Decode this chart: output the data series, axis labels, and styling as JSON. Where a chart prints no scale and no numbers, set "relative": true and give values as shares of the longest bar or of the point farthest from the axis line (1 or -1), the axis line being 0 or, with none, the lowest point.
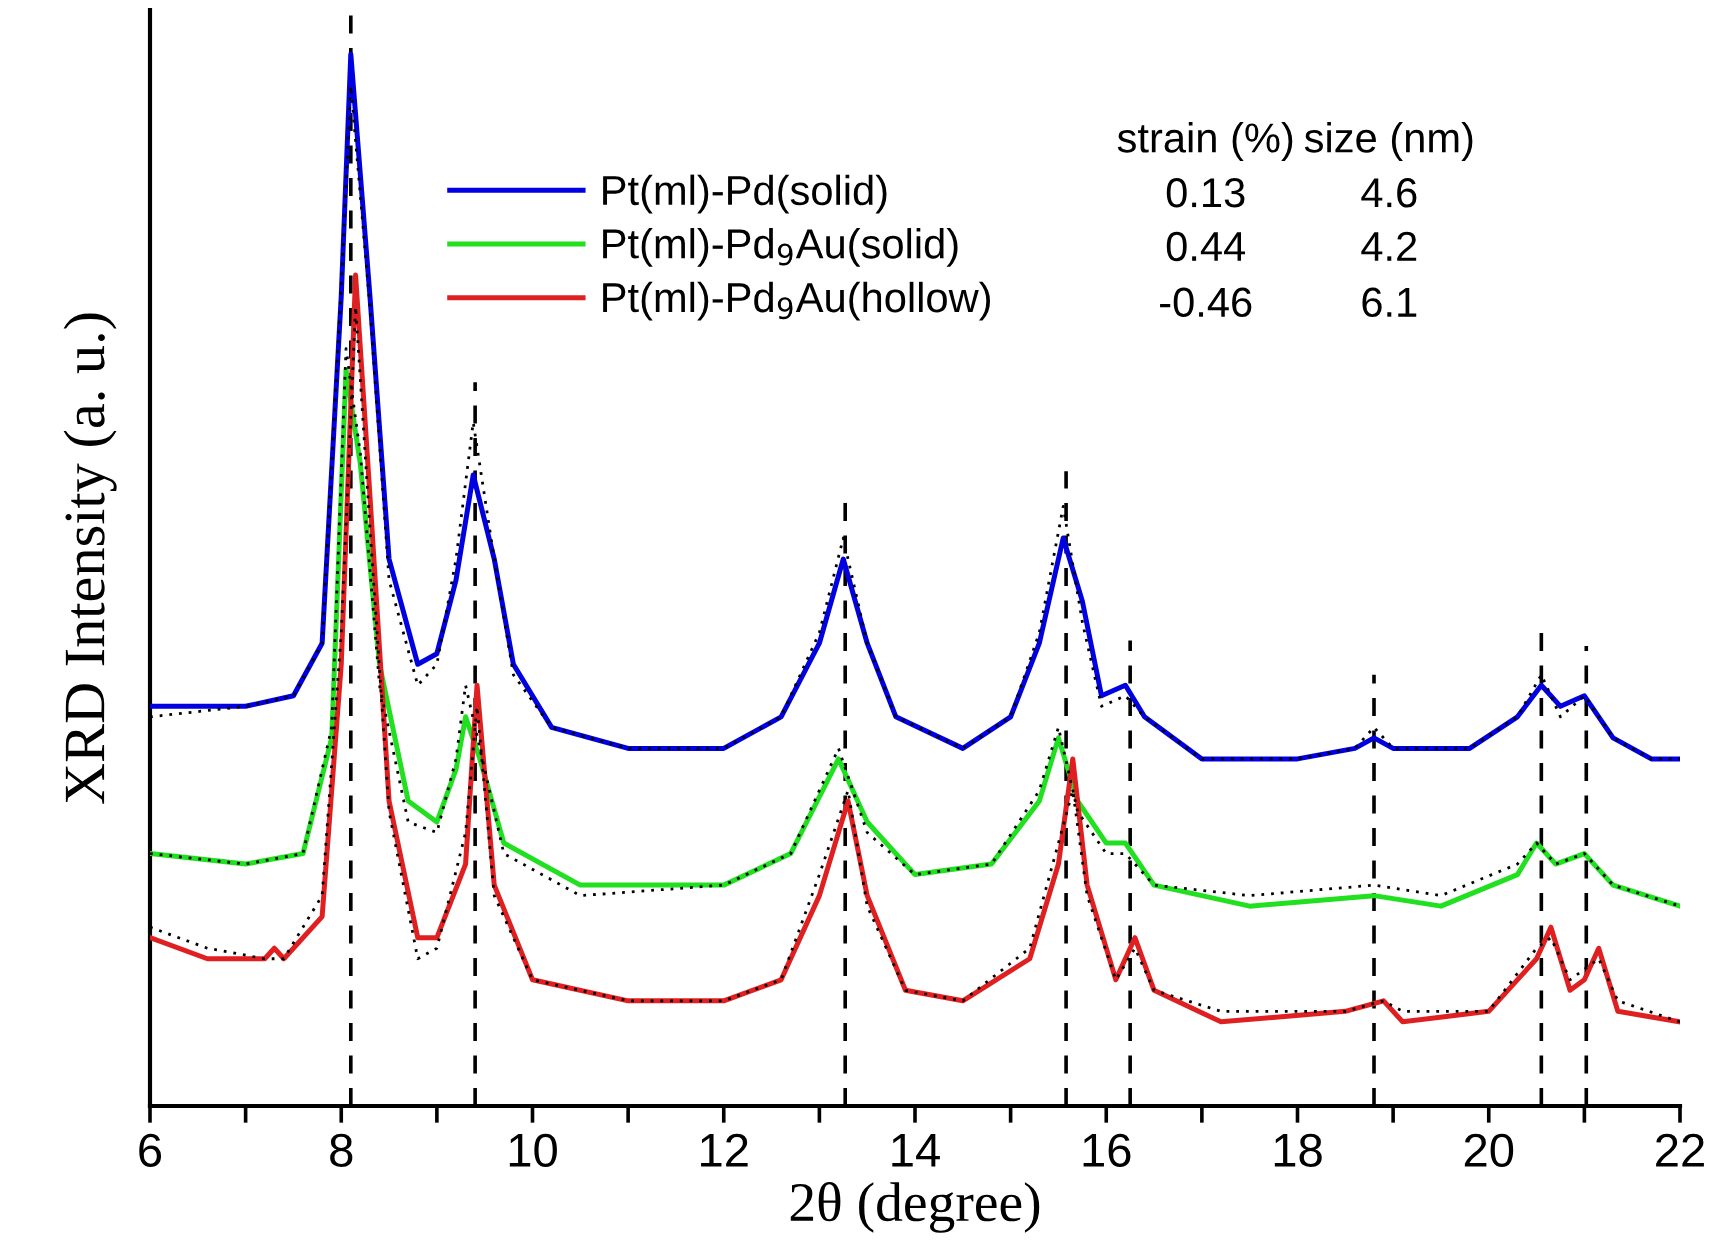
{
  "chart_data": {
    "type": "line",
    "relative": true,
    "xlabel": "2θ (degree)",
    "ylabel": "XRD Intensity (a. u.)",
    "xlim": [
      6,
      22
    ],
    "xticks": [
      6,
      {
        "value": 7,
        "label": null
      },
      8,
      {
        "value": 9,
        "label": null
      },
      10,
      {
        "value": 11,
        "label": null
      },
      12,
      {
        "value": 13,
        "label": null
      },
      14,
      {
        "value": 15,
        "label": null
      },
      16,
      {
        "value": 17,
        "label": null
      },
      18,
      {
        "value": 19,
        "label": null
      },
      20,
      {
        "value": 21,
        "label": null
      },
      22
    ],
    "legend": "top",
    "grid": false,
    "tick_labels": "x",
    "line_style": "solid",
    "series": [
      {
        "name": "Pt(ml)-Pd(solid)",
        "color": "#0000e0",
        "x": [
          6,
          7,
          7.5,
          7.8,
          8.0,
          8.1,
          8.3,
          8.5,
          8.8,
          9.0,
          9.2,
          9.38,
          9.6,
          9.8,
          10.2,
          11,
          12,
          12.6,
          13.0,
          13.25,
          13.5,
          13.8,
          14.5,
          15.0,
          15.3,
          15.55,
          15.75,
          15.95,
          16.2,
          16.4,
          17,
          18,
          18.6,
          18.8,
          19.0,
          19.8,
          20.3,
          20.55,
          20.75,
          21.0,
          21.3,
          21.7,
          22
        ],
        "values": [
          0.38,
          0.38,
          0.39,
          0.44,
          0.77,
          1.0,
          0.77,
          0.52,
          0.42,
          0.43,
          0.5,
          0.6,
          0.52,
          0.42,
          0.36,
          0.34,
          0.34,
          0.37,
          0.44,
          0.52,
          0.44,
          0.37,
          0.34,
          0.37,
          0.44,
          0.54,
          0.48,
          0.39,
          0.4,
          0.37,
          0.33,
          0.33,
          0.34,
          0.35,
          0.34,
          0.34,
          0.37,
          0.4,
          0.38,
          0.39,
          0.35,
          0.33,
          0.33
        ]
      },
      {
        "name": "Pt(ml)-Pd$_{9}$Au(solid)",
        "color": "#20e020",
        "x": [
          6,
          7,
          7.6,
          7.9,
          8.05,
          8.2,
          8.4,
          8.7,
          9.0,
          9.2,
          9.3,
          9.45,
          9.7,
          10.5,
          12,
          12.7,
          13.2,
          13.5,
          14,
          14.8,
          15.3,
          15.5,
          15.7,
          16.0,
          16.2,
          16.5,
          17.5,
          18.8,
          19.5,
          20.3,
          20.5,
          20.7,
          21.0,
          21.3,
          22
        ],
        "values": [
          0.24,
          0.23,
          0.24,
          0.35,
          0.7,
          0.61,
          0.42,
          0.29,
          0.27,
          0.32,
          0.37,
          0.33,
          0.25,
          0.21,
          0.21,
          0.24,
          0.33,
          0.27,
          0.22,
          0.23,
          0.29,
          0.35,
          0.29,
          0.25,
          0.25,
          0.21,
          0.19,
          0.2,
          0.19,
          0.22,
          0.25,
          0.23,
          0.24,
          0.21,
          0.19
        ]
      },
      {
        "name": "Pt(ml)-Pd$_{9}$Au(hollow)",
        "color": "#e02020",
        "x": [
          6,
          6.6,
          7.2,
          7.3,
          7.4,
          7.8,
          8.0,
          8.15,
          8.3,
          8.5,
          8.8,
          9.0,
          9.3,
          9.42,
          9.6,
          10,
          11,
          12,
          12.6,
          13.0,
          13.3,
          13.5,
          13.9,
          14.5,
          15.2,
          15.5,
          15.65,
          15.8,
          16.1,
          16.3,
          16.5,
          17.2,
          18.5,
          18.9,
          19.1,
          20.0,
          20.5,
          20.65,
          20.85,
          21.0,
          21.15,
          21.35,
          22
        ],
        "values": [
          0.16,
          0.14,
          0.14,
          0.15,
          0.14,
          0.18,
          0.42,
          0.79,
          0.58,
          0.29,
          0.16,
          0.16,
          0.23,
          0.4,
          0.21,
          0.12,
          0.1,
          0.1,
          0.12,
          0.2,
          0.29,
          0.2,
          0.11,
          0.1,
          0.14,
          0.23,
          0.33,
          0.21,
          0.12,
          0.16,
          0.11,
          0.08,
          0.09,
          0.1,
          0.08,
          0.09,
          0.14,
          0.17,
          0.11,
          0.12,
          0.15,
          0.09,
          0.08
        ]
      },
      {
        "color": "#000000",
        "line_style": "dotted",
        "x": [
          6,
          7,
          7.5,
          7.8,
          8.0,
          8.1,
          8.3,
          8.5,
          8.8,
          9.0,
          9.2,
          9.38,
          9.6,
          9.8,
          10.2,
          11,
          12,
          12.6,
          13.0,
          13.25,
          13.5,
          13.8,
          14.5,
          15.0,
          15.3,
          15.55,
          15.75,
          15.95,
          16.2,
          16.4,
          17,
          18,
          18.6,
          18.8,
          19.0,
          19.8,
          20.3,
          20.55,
          20.75,
          21.0,
          21.3,
          21.7,
          22
        ],
        "values": [
          0.37,
          0.38,
          0.39,
          0.44,
          0.78,
          0.97,
          0.76,
          0.5,
          0.4,
          0.42,
          0.52,
          0.65,
          0.52,
          0.41,
          0.36,
          0.34,
          0.34,
          0.37,
          0.45,
          0.54,
          0.44,
          0.37,
          0.34,
          0.37,
          0.45,
          0.57,
          0.46,
          0.38,
          0.39,
          0.37,
          0.33,
          0.33,
          0.34,
          0.36,
          0.34,
          0.34,
          0.37,
          0.41,
          0.37,
          0.39,
          0.35,
          0.33,
          0.33
        ]
      },
      {
        "color": "#000000",
        "line_style": "dotted",
        "x": [
          6,
          7,
          7.6,
          7.9,
          8.05,
          8.2,
          8.4,
          8.7,
          9.0,
          9.2,
          9.3,
          9.45,
          9.7,
          10.5,
          12,
          12.7,
          13.2,
          13.5,
          14,
          14.8,
          15.3,
          15.5,
          15.7,
          16.0,
          16.2,
          16.5,
          17.5,
          18.8,
          19.5,
          20.3,
          20.5,
          20.7,
          21.0,
          21.3,
          22
        ],
        "values": [
          0.24,
          0.23,
          0.24,
          0.36,
          0.72,
          0.62,
          0.4,
          0.27,
          0.26,
          0.33,
          0.4,
          0.34,
          0.24,
          0.2,
          0.21,
          0.24,
          0.34,
          0.26,
          0.22,
          0.23,
          0.3,
          0.36,
          0.28,
          0.24,
          0.24,
          0.21,
          0.2,
          0.21,
          0.2,
          0.23,
          0.25,
          0.23,
          0.24,
          0.21,
          0.19
        ]
      },
      {
        "color": "#000000",
        "line_style": "dotted",
        "x": [
          6,
          6.6,
          7.2,
          7.3,
          7.4,
          7.8,
          8.0,
          8.15,
          8.3,
          8.5,
          8.8,
          9.0,
          9.3,
          9.42,
          9.6,
          10,
          11,
          12,
          12.6,
          13.0,
          13.3,
          13.5,
          13.9,
          14.5,
          15.2,
          15.5,
          15.65,
          15.8,
          16.1,
          16.3,
          16.5,
          17.2,
          18.5,
          18.9,
          19.1,
          20.0,
          20.5,
          20.65,
          20.85,
          21.0,
          21.15,
          21.35,
          22
        ],
        "values": [
          0.17,
          0.15,
          0.14,
          0.14,
          0.14,
          0.2,
          0.45,
          0.76,
          0.55,
          0.28,
          0.14,
          0.15,
          0.26,
          0.38,
          0.2,
          0.12,
          0.1,
          0.1,
          0.12,
          0.22,
          0.3,
          0.19,
          0.11,
          0.1,
          0.15,
          0.25,
          0.3,
          0.2,
          0.12,
          0.15,
          0.11,
          0.09,
          0.09,
          0.1,
          0.09,
          0.09,
          0.15,
          0.16,
          0.12,
          0.13,
          0.14,
          0.1,
          0.08
        ]
      }
    ],
    "ref_lines": [
      {
        "axis": "x",
        "value": 8.1,
        "color": "#000000",
        "line_style": "dashed"
      },
      {
        "axis": "x",
        "value": 9.4,
        "color": "#000000",
        "line_style": "dashed"
      },
      {
        "axis": "x",
        "value": 13.27,
        "color": "#000000",
        "line_style": "dashed"
      },
      {
        "axis": "x",
        "value": 15.58,
        "color": "#000000",
        "line_style": "dashed"
      },
      {
        "axis": "x",
        "value": 16.25,
        "color": "#000000",
        "line_style": "dashed"
      },
      {
        "axis": "x",
        "value": 18.8,
        "color": "#000000",
        "line_style": "dashed"
      },
      {
        "axis": "x",
        "value": 20.55,
        "color": "#000000",
        "line_style": "dashed"
      },
      {
        "axis": "x",
        "value": 21.02,
        "color": "#000000",
        "line_style": "dashed"
      }
    ],
    "annotations": [
      "strain (%)",
      "size (nm)",
      "0.13",
      "4.6",
      "0.44",
      "4.2",
      "-0.46",
      "6.1"
    ]
  }
}
